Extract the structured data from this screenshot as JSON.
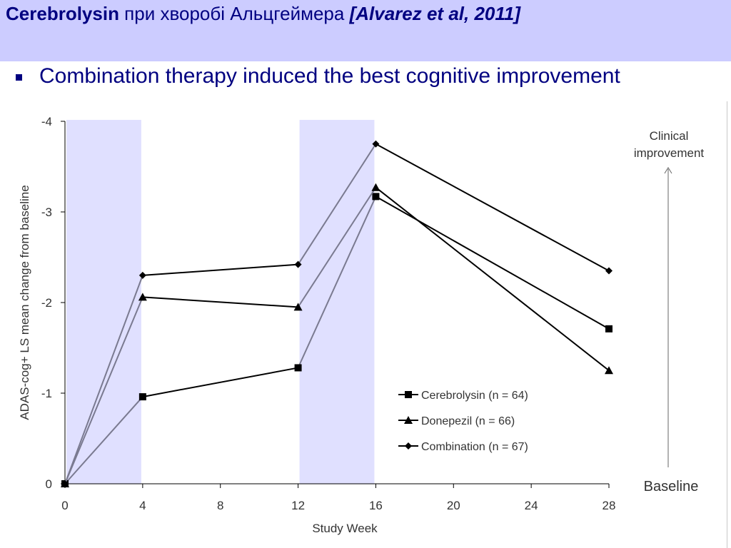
{
  "slide": {
    "title_main": "Cerebrolysin",
    "title_mid": " при хворобі Альцгеймера ",
    "title_cite": "[Alvarez et al, 2011]",
    "bullet": "Combination therapy induced the best cognitive improvement"
  },
  "colors": {
    "title_band": "#ccccff",
    "title_text": "#000080",
    "shade": "#e0e0ff",
    "series_line": "#000000",
    "series_line_shaded": "#7a7a90"
  },
  "chart_data": {
    "type": "line",
    "xlabel": "Study Week",
    "ylabel": "ADAS-cog+ LS mean change from baseline",
    "x_ticks": [
      0,
      4,
      8,
      12,
      16,
      20,
      24,
      28
    ],
    "y_ticks": [
      0,
      -1,
      -2,
      -3,
      -4
    ],
    "xlim": [
      0,
      28
    ],
    "ylim": [
      0,
      -4
    ],
    "y_inverted": true,
    "shaded_x_ranges": [
      [
        0,
        4
      ],
      [
        12,
        16
      ]
    ],
    "legend_position": "lower-right",
    "series": [
      {
        "name": "Cerebrolysin (n = 64)",
        "marker": "square",
        "x": [
          0,
          4,
          12,
          16,
          28
        ],
        "y": [
          0,
          -0.96,
          -1.28,
          -3.17,
          -1.71
        ]
      },
      {
        "name": "Donepezil (n = 66)",
        "marker": "triangle",
        "x": [
          0,
          4,
          12,
          16,
          28
        ],
        "y": [
          0,
          -2.06,
          -1.95,
          -3.27,
          -1.25
        ]
      },
      {
        "name": "Combination (n = 67)",
        "marker": "diamond",
        "x": [
          0,
          4,
          12,
          16,
          28
        ],
        "y": [
          0,
          -2.3,
          -2.42,
          -3.75,
          -2.35
        ]
      }
    ],
    "annotations": {
      "improvement_line1": "Clinical",
      "improvement_line2": "improvement",
      "baseline": "Baseline"
    }
  }
}
